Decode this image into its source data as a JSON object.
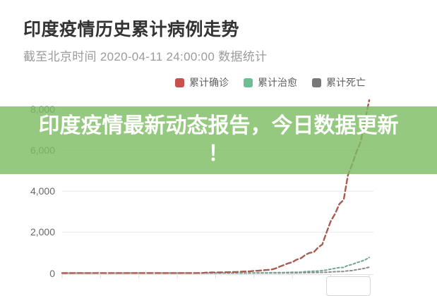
{
  "header": {
    "title": "印度疫情历史累计病例走势",
    "subtitle": "截至北京时间 2020-04-11 24:00:00 数据统计"
  },
  "legend": [
    {
      "label": "累计确诊",
      "color": "#c8524b"
    },
    {
      "label": "累计治愈",
      "color": "#6dbe92"
    },
    {
      "label": "累计死亡",
      "color": "#787878"
    }
  ],
  "banner": {
    "lines": [
      "印度疫情最新动态报告，今日数据更新",
      "！"
    ],
    "background_color": "#7dbd63",
    "text_color": "#ffffff"
  },
  "chart_data": {
    "type": "line",
    "title": "印度疫情历史累计病例走势",
    "line_style": "dashed",
    "grid": true,
    "legend_position": "top",
    "x_labels_visible": false,
    "x_point_count": 73,
    "ylim": [
      0,
      8800
    ],
    "yticks": [
      0,
      2000,
      4000,
      6000,
      8000
    ],
    "ytick_labels": [
      "0",
      "2,000",
      "4,000",
      "6,000",
      "8,000"
    ],
    "series": [
      {
        "name": "累计确诊",
        "color": "#a85b50",
        "values": [
          1,
          1,
          1,
          2,
          3,
          3,
          3,
          3,
          3,
          3,
          3,
          3,
          3,
          3,
          3,
          3,
          3,
          3,
          3,
          3,
          3,
          3,
          3,
          3,
          3,
          3,
          3,
          3,
          3,
          3,
          3,
          3,
          5,
          6,
          28,
          30,
          31,
          34,
          39,
          44,
          50,
          60,
          74,
          81,
          84,
          110,
          114,
          137,
          151,
          173,
          223,
          315,
          396,
          480,
          536,
          657,
          727,
          887,
          987,
          1024,
          1251,
          1397,
          1998,
          2543,
          2902,
          3374,
          3577,
          4778,
          5311,
          5916,
          6412,
          7447,
          8446
        ]
      },
      {
        "name": "累计治愈",
        "color": "#74a497",
        "values": [
          0,
          0,
          0,
          0,
          0,
          0,
          0,
          0,
          0,
          0,
          0,
          0,
          0,
          0,
          0,
          3,
          3,
          3,
          3,
          3,
          3,
          3,
          3,
          3,
          3,
          3,
          3,
          3,
          3,
          3,
          3,
          3,
          3,
          3,
          3,
          3,
          3,
          3,
          3,
          3,
          3,
          3,
          3,
          3,
          4,
          10,
          13,
          14,
          15,
          20,
          23,
          23,
          27,
          33,
          40,
          43,
          45,
          73,
          84,
          95,
          102,
          123,
          150,
          192,
          229,
          267,
          275,
          375,
          421,
          506,
          569,
          643,
          764
        ]
      },
      {
        "name": "累计死亡",
        "color": "#8c8c8c",
        "values": [
          0,
          0,
          0,
          0,
          0,
          0,
          0,
          0,
          0,
          0,
          0,
          0,
          0,
          0,
          0,
          0,
          0,
          0,
          0,
          0,
          0,
          0,
          0,
          0,
          0,
          0,
          0,
          0,
          0,
          0,
          0,
          0,
          0,
          0,
          0,
          0,
          0,
          0,
          0,
          0,
          0,
          0,
          1,
          2,
          2,
          2,
          2,
          3,
          3,
          4,
          4,
          5,
          7,
          9,
          10,
          11,
          20,
          20,
          24,
          27,
          32,
          35,
          41,
          56,
          68,
          77,
          83,
          111,
          124,
          166,
          199,
          239,
          288
        ]
      }
    ]
  }
}
